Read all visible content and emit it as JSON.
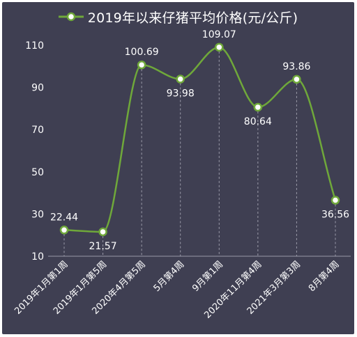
{
  "chart_data": {
    "type": "line",
    "smooth": true,
    "legend_position": "top",
    "series": [
      {
        "name": "2019年以来仔猪平均价格(元/公斤)",
        "color": "#6fa83a",
        "values": [
          22.44,
          21.57,
          100.69,
          93.98,
          109.07,
          80.64,
          93.86,
          36.56
        ],
        "labels": [
          "22.44",
          "21.57",
          "100.69",
          "93.98",
          "109.07",
          "80.64",
          "93.86",
          "36.56"
        ]
      }
    ],
    "categories": [
      "2019年1月第1周",
      "2019年1月第5周",
      "2020年4月第5周",
      "5月第4周",
      "9月第1周",
      "2020年11月第4周",
      "2021年3月第3周",
      "8月第4周"
    ],
    "ylim": [
      10,
      110
    ],
    "yticks": [
      "10",
      "30",
      "50",
      "70",
      "90",
      "110"
    ],
    "grid": "vertical-dashed",
    "colors": {
      "background": "#3f3f52",
      "text": "#ffffff",
      "line": "#6fa83a",
      "grid": "#9a9aa8"
    }
  }
}
